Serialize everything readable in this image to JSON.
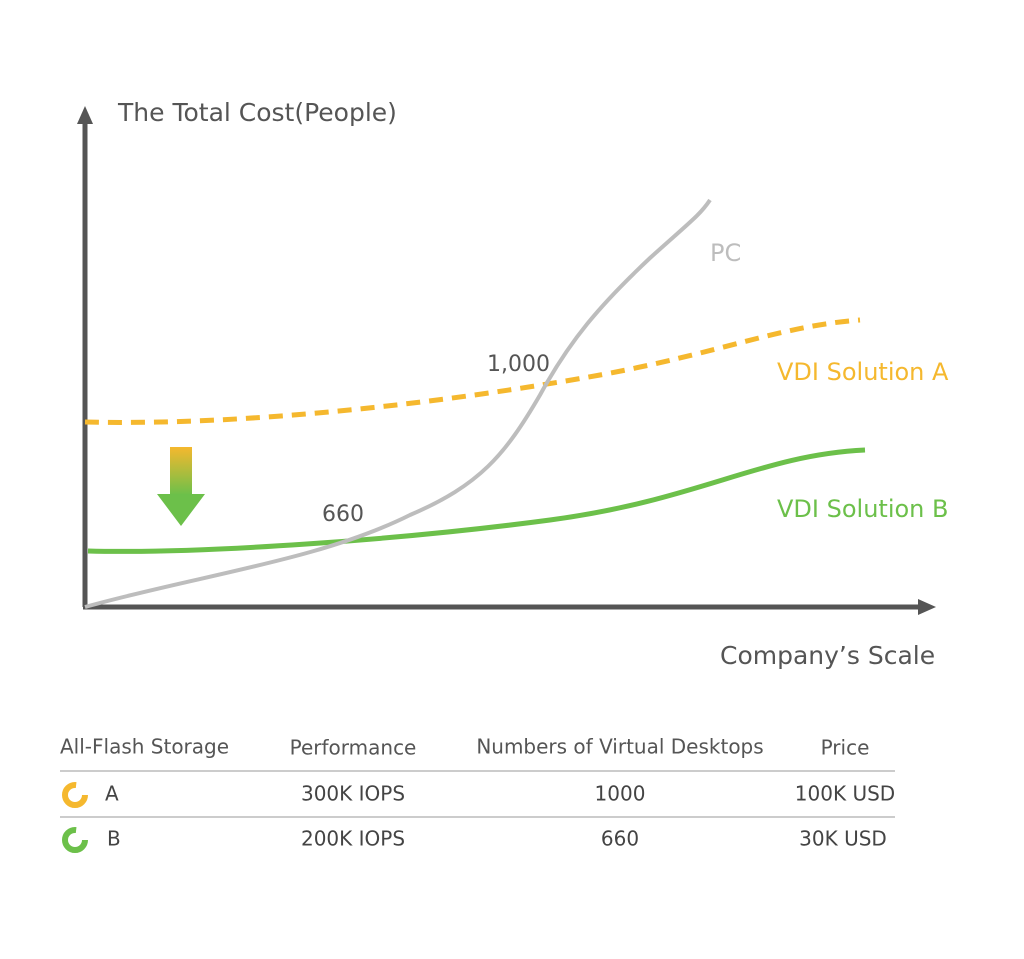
{
  "chart": {
    "y_axis_label": "The Total Cost(People)",
    "x_axis_label": "Company’s Scale",
    "series_labels": {
      "pc": "PC",
      "a": "VDI Solution A",
      "b": "VDI Solution B"
    },
    "annotations": [
      "1,000",
      "660"
    ]
  },
  "table": {
    "header": [
      "All-Flash Storage",
      "Performance",
      "Numbers of Virtual Desktops",
      "Price"
    ],
    "rows": [
      [
        "A",
        "300K IOPS",
        "1000",
        "100K USD"
      ],
      [
        "B",
        "200K IOPS",
        "660",
        "30K USD"
      ]
    ]
  }
}
